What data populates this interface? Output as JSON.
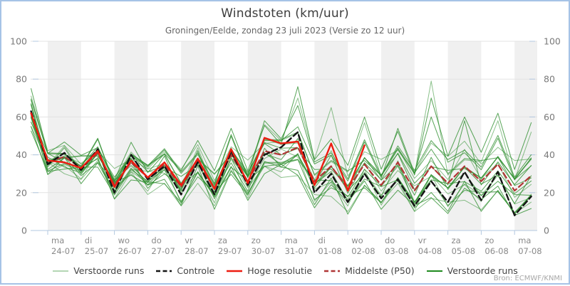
{
  "page": {
    "title": "Windstoten (km/uur)",
    "subtitle": "Groningen/Eelde, zondag 23 juli 2023 (Versie zo 12 uur)",
    "source": "Bron: ECMWF/KNMI"
  },
  "legend": [
    {
      "label": "Verstoorde runs",
      "color": "#9cc89c",
      "dash": false,
      "width": 1.5
    },
    {
      "label": "Controle",
      "color": "#141414",
      "dash": true,
      "width": 2.4
    },
    {
      "label": "Hoge resolutie",
      "color": "#ed1c10",
      "dash": false,
      "width": 2.4
    },
    {
      "label": "Middelste (P50)",
      "color": "#b03535",
      "dash": true,
      "width": 2.4
    },
    {
      "label": "Verstoorde runs",
      "color": "#1f8a1f",
      "dash": false,
      "width": 2.0
    }
  ],
  "colors": {
    "band": "#f0f0f0",
    "grid": "#e3e3e3",
    "axis": "#b3c8e0",
    "tick": "#b3c8e0",
    "border": "#a6c3e6",
    "y_label": "#7a7a7a",
    "x_label": "#8a8a8a",
    "ensemble": "#2e8f2e",
    "control": "#141414",
    "hres": "#ed1c10",
    "p50": "#b03535"
  },
  "chart_data": {
    "type": "line",
    "title": "Windstoten (km/uur)",
    "station": "Groningen/Eelde",
    "run": "zondag 23 juli 2023, versie zo 12 uur",
    "x_start": "23-07 12:00",
    "step_hours": 12,
    "ylim": [
      0,
      100
    ],
    "yticks": [
      0,
      20,
      40,
      60,
      80,
      100
    ],
    "grid": true,
    "legend_position": "bottom-center",
    "days": [
      {
        "dow": "ma",
        "date": "24-07"
      },
      {
        "dow": "di",
        "date": "25-07"
      },
      {
        "dow": "wo",
        "date": "26-07"
      },
      {
        "dow": "do",
        "date": "27-07"
      },
      {
        "dow": "vr",
        "date": "28-07"
      },
      {
        "dow": "za",
        "date": "29-07"
      },
      {
        "dow": "zo",
        "date": "30-07"
      },
      {
        "dow": "ma",
        "date": "31-07"
      },
      {
        "dow": "di",
        "date": "01-08"
      },
      {
        "dow": "wo",
        "date": "02-08"
      },
      {
        "dow": "do",
        "date": "03-08"
      },
      {
        "dow": "vr",
        "date": "04-08"
      },
      {
        "dow": "za",
        "date": "05-08"
      },
      {
        "dow": "zo",
        "date": "06-08"
      },
      {
        "dow": "ma",
        "date": "07-08"
      }
    ],
    "series": [
      {
        "name": "Hoge resolutie",
        "key": "hres",
        "dash": false,
        "values": [
          62,
          37,
          36,
          33,
          42,
          23,
          37,
          28,
          36,
          24,
          38,
          22,
          43,
          25,
          49,
          46,
          47,
          24,
          46,
          21,
          45
        ]
      },
      {
        "name": "Controle",
        "key": "control",
        "dash": true,
        "values": [
          63,
          35,
          41,
          32,
          43,
          20,
          40,
          27,
          34,
          19,
          36,
          19,
          42,
          24,
          40,
          44,
          52,
          20,
          30,
          15,
          30,
          17,
          27,
          13,
          26,
          15,
          31,
          16,
          31,
          8,
          18
        ]
      },
      {
        "name": "Middelste (P50)",
        "key": "p50",
        "dash": true,
        "values": [
          62,
          36,
          39,
          33,
          41,
          24,
          36,
          28,
          35,
          23,
          37,
          22,
          40,
          26,
          42,
          40,
          44,
          26,
          34,
          22,
          35,
          24,
          36,
          21,
          34,
          25,
          34,
          26,
          35,
          21,
          29
        ]
      }
    ],
    "ensemble": {
      "name": "Verstoorde runs",
      "base": [
        62,
        36,
        39,
        33,
        41,
        24,
        36,
        28,
        35,
        23,
        37,
        22,
        40,
        26,
        42,
        40,
        44,
        26,
        34,
        22,
        35,
        24,
        36,
        21,
        34,
        25,
        34,
        26,
        35,
        21,
        29
      ],
      "spread": [
        6,
        4,
        5,
        5,
        5,
        6,
        7,
        7,
        7,
        8,
        8,
        8,
        9,
        9,
        10,
        10,
        12,
        11,
        12,
        11,
        12,
        12,
        13,
        13,
        14,
        14,
        14,
        14,
        15,
        15,
        16
      ],
      "coefs": [
        -1,
        -0.85,
        -0.7,
        -0.55,
        -0.4,
        -0.25,
        -0.1,
        0.05,
        0.2,
        0.35,
        0.5,
        0.65,
        0.8,
        0.95,
        -0.9,
        -0.6,
        -0.3,
        0.15,
        0.45,
        0.75
      ],
      "wiggle": [
        -3,
        -1,
        2,
        4,
        1,
        -2,
        -4,
        3
      ],
      "spikes": [
        [
          13,
          0,
          75
        ],
        [
          12,
          0,
          71
        ],
        [
          0,
          0,
          55
        ],
        [
          13,
          12,
          54
        ],
        [
          19,
          14,
          58
        ],
        [
          18,
          14,
          56
        ],
        [
          13,
          16,
          76
        ],
        [
          12,
          16,
          70
        ],
        [
          19,
          16,
          66
        ],
        [
          12,
          18,
          65
        ],
        [
          13,
          20,
          60
        ],
        [
          18,
          20,
          57
        ],
        [
          11,
          22,
          54
        ],
        [
          18,
          24,
          79
        ],
        [
          13,
          24,
          70
        ],
        [
          11,
          24,
          60
        ],
        [
          17,
          26,
          58
        ],
        [
          13,
          26,
          60
        ],
        [
          13,
          28,
          62
        ],
        [
          18,
          28,
          58
        ],
        [
          13,
          30,
          57
        ],
        [
          18,
          30,
          52
        ],
        [
          14,
          29,
          8
        ],
        [
          0,
          23,
          10
        ],
        [
          14,
          25,
          9
        ],
        [
          0,
          9,
          13
        ],
        [
          14,
          17,
          12
        ]
      ],
      "envelope_min": [
        55,
        30,
        32,
        26,
        34,
        15,
        28,
        20,
        28,
        14,
        28,
        14,
        30,
        18,
        30,
        28,
        30,
        15,
        22,
        12,
        20,
        12,
        20,
        12,
        15,
        10,
        15,
        12,
        18,
        8,
        10
      ],
      "envelope_max": [
        75,
        42,
        48,
        40,
        50,
        32,
        48,
        38,
        45,
        34,
        48,
        34,
        52,
        40,
        58,
        55,
        76,
        45,
        65,
        40,
        60,
        40,
        55,
        42,
        79,
        45,
        60,
        48,
        62,
        45,
        57
      ]
    }
  }
}
